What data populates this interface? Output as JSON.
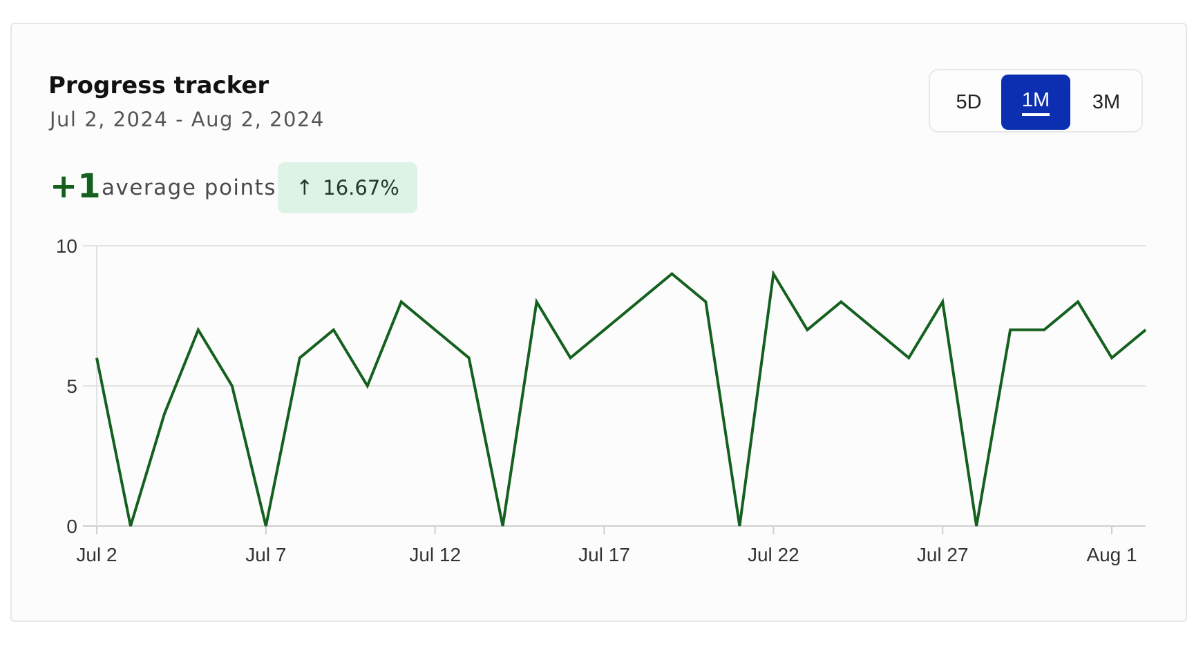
{
  "header": {
    "title": "Progress tracker",
    "date_range": "Jul 2, 2024 - Aug 2, 2024"
  },
  "range_selector": {
    "options": [
      "5D",
      "1M",
      "3M"
    ],
    "selected": "1M"
  },
  "summary": {
    "value": "+1",
    "label": "average points",
    "change": "16.67%",
    "change_direction_icon": "arrow-up-icon"
  },
  "colors": {
    "line": "#14601f",
    "selected_button": "#0b2fb0",
    "badge_bg": "#dcf3e6",
    "grid": "#e2e2e2"
  },
  "chart_data": {
    "type": "line",
    "x": [
      "2024-07-02",
      "2024-07-03",
      "2024-07-04",
      "2024-07-05",
      "2024-07-06",
      "2024-07-07",
      "2024-07-08",
      "2024-07-09",
      "2024-07-10",
      "2024-07-11",
      "2024-07-12",
      "2024-07-13",
      "2024-07-14",
      "2024-07-15",
      "2024-07-16",
      "2024-07-17",
      "2024-07-18",
      "2024-07-19",
      "2024-07-20",
      "2024-07-21",
      "2024-07-22",
      "2024-07-23",
      "2024-07-24",
      "2024-07-25",
      "2024-07-26",
      "2024-07-27",
      "2024-07-28",
      "2024-07-29",
      "2024-07-30",
      "2024-07-31",
      "2024-08-01",
      "2024-08-02"
    ],
    "series": [
      {
        "values": [
          6,
          0,
          4,
          7,
          5,
          0,
          6,
          7,
          5,
          8,
          7,
          6,
          0,
          8,
          6,
          7,
          8,
          9,
          8,
          0,
          9,
          7,
          8,
          7,
          6,
          8,
          0,
          7,
          7,
          8,
          6,
          7
        ]
      }
    ],
    "x_tick_labels": [
      "Jul 2",
      "Jul 7",
      "Jul 12",
      "Jul 17",
      "Jul 22",
      "Jul 27",
      "Aug 1"
    ],
    "y_ticks": [
      0,
      5,
      10
    ],
    "ylim": [
      0,
      10
    ],
    "grid": "horizontal",
    "legend": "none",
    "title": "",
    "xlabel": "",
    "ylabel": ""
  }
}
